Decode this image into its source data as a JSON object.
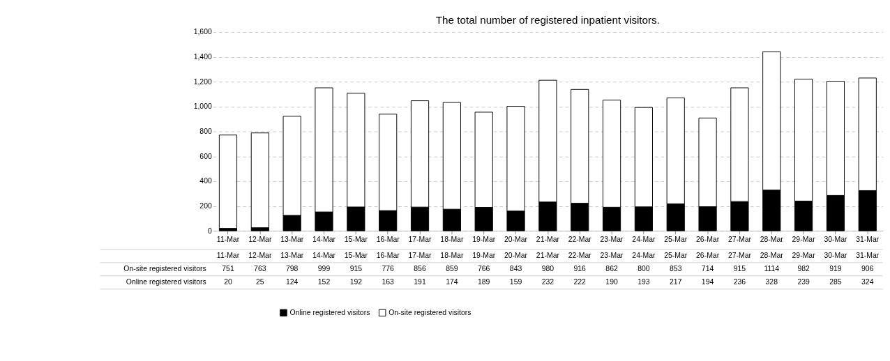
{
  "chart_data": {
    "type": "bar",
    "title": "The total number of registered inpatient visitors.",
    "categories": [
      "11-Mar",
      "12-Mar",
      "13-Mar",
      "14-Mar",
      "15-Mar",
      "16-Mar",
      "17-Mar",
      "18-Mar",
      "19-Mar",
      "20-Mar",
      "21-Mar",
      "22-Mar",
      "23-Mar",
      "24-Mar",
      "25-Mar",
      "26-Mar",
      "27-Mar",
      "28-Mar",
      "29-Mar",
      "30-Mar",
      "31-Mar"
    ],
    "series": [
      {
        "name": "Online registered visitors",
        "color": "#000000",
        "values": [
          20,
          25,
          124,
          152,
          192,
          163,
          191,
          174,
          189,
          159,
          232,
          222,
          190,
          193,
          217,
          194,
          236,
          328,
          239,
          285,
          324
        ]
      },
      {
        "name": "On-site registered visitors",
        "color": "#ffffff",
        "values": [
          751,
          763,
          798,
          999,
          915,
          776,
          856,
          859,
          766,
          843,
          980,
          916,
          862,
          800,
          853,
          714,
          915,
          1114,
          982,
          919,
          906
        ]
      }
    ],
    "stacked": true,
    "ylim": [
      0,
      1600
    ],
    "yticks": [
      0,
      200,
      400,
      600,
      800,
      {
        "value": 1000,
        "label": "1,000"
      },
      {
        "value": 1200,
        "label": "1,200"
      },
      {
        "value": 1400,
        "label": "1,400"
      },
      {
        "value": 1600,
        "label": "1,600"
      }
    ],
    "grid": "y",
    "legend": "bottom",
    "data_labels": true
  }
}
